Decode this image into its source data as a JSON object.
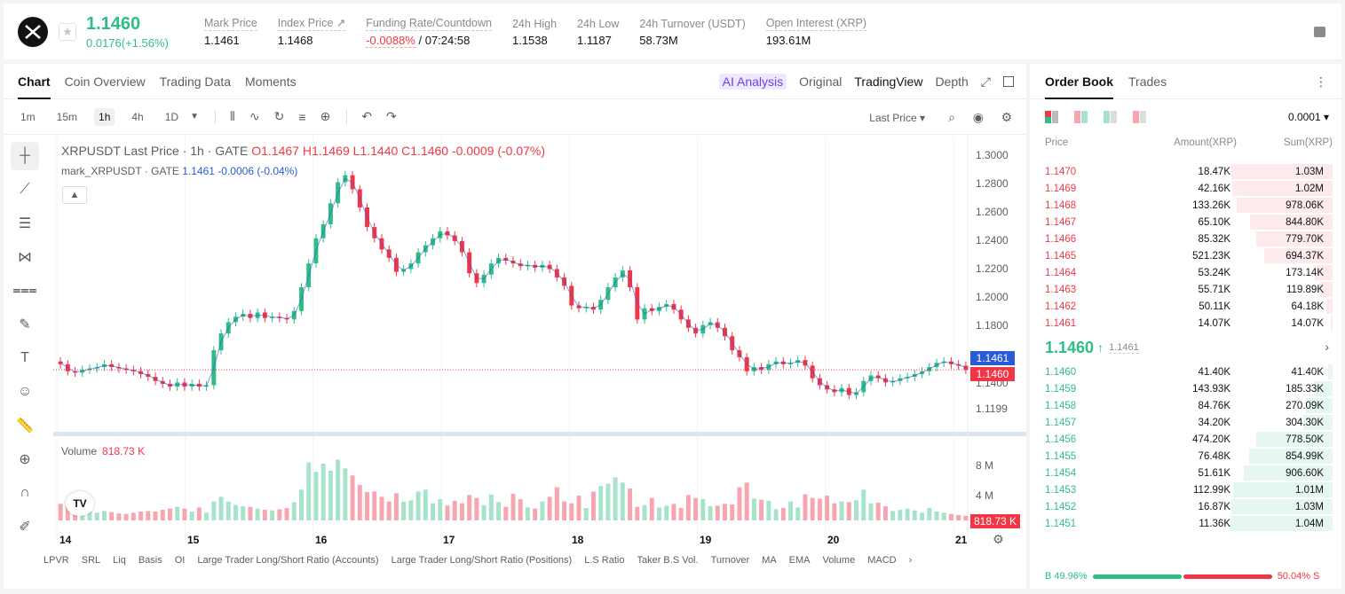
{
  "header": {
    "last_price": "1.1460",
    "change": "0.0176(+1.56%)",
    "stats": [
      {
        "label": "Mark Price",
        "value": "1.1461"
      },
      {
        "label": "Index Price ↗",
        "value": "1.1468"
      },
      {
        "label": "Funding Rate/Countdown",
        "value_neg": "-0.0088%",
        "value": " / 07:24:58"
      },
      {
        "label": "24h High",
        "value": "1.1538"
      },
      {
        "label": "24h Low",
        "value": "1.1187"
      },
      {
        "label": "24h Turnover (USDT)",
        "value": "58.73M"
      },
      {
        "label": "Open Interest (XRP)",
        "value": "193.61M"
      }
    ]
  },
  "chart_tabs": [
    "Chart",
    "Coin Overview",
    "Trading Data",
    "Moments"
  ],
  "view_tabs": [
    "AI Analysis",
    "Original",
    "TradingView",
    "Depth"
  ],
  "timeframes": [
    "1m",
    "15m",
    "1h",
    "4h",
    "1D"
  ],
  "price_type": "Last Price",
  "legend": {
    "title": "XRPUSDT Last Price · 1h · GATE",
    "o": "O1.1467",
    "h": "H1.1469",
    "l": "L1.1440",
    "c": "C1.1460",
    "chg": "-0.0009 (-0.07%)",
    "mark_name": "mark_XRPUSDT · GATE",
    "mark_val": "1.1461 -0.0006 (-0.04%)"
  },
  "volume_legend": {
    "label": "Volume",
    "value": "818.73 K"
  },
  "y_ticks": [
    "1.3000",
    "1.2800",
    "1.2600",
    "1.2400",
    "1.2200",
    "1.2000",
    "1.1800",
    "1.1400",
    "1.1199"
  ],
  "price_tags": {
    "mark": "1.1461",
    "last": "1.1460",
    "vol": "818.73 K"
  },
  "vol_ticks": [
    "8 M",
    "4 M"
  ],
  "x_ticks": [
    "14",
    "15",
    "16",
    "17",
    "18",
    "19",
    "20",
    "21"
  ],
  "indicators": [
    "LPVR",
    "SRL",
    "Liq",
    "Basis",
    "OI",
    "Large Trader Long/Short Ratio (Accounts)",
    "Large Trader Long/Short Ratio (Positions)",
    "L.S Ratio",
    "Taker B.S Vol.",
    "Turnover",
    "MA",
    "EMA",
    "Volume",
    "MACD"
  ],
  "chart_data": {
    "type": "candlestick",
    "symbol": "XRPUSDT",
    "interval": "1h",
    "x_range": [
      "14",
      "21"
    ],
    "ylim": [
      1.11,
      1.3
    ],
    "close_series": [
      1.15,
      1.145,
      1.144,
      1.146,
      1.147,
      1.148,
      1.15,
      1.148,
      1.147,
      1.146,
      1.145,
      1.143,
      1.141,
      1.138,
      1.136,
      1.134,
      1.137,
      1.134,
      1.136,
      1.134,
      1.135,
      1.16,
      1.172,
      1.18,
      1.184,
      1.186,
      1.183,
      1.187,
      1.183,
      1.184,
      1.183,
      1.182,
      1.188,
      1.205,
      1.222,
      1.24,
      1.25,
      1.265,
      1.28,
      1.285,
      1.275,
      1.262,
      1.248,
      1.24,
      1.232,
      1.226,
      1.216,
      1.218,
      1.222,
      1.23,
      1.235,
      1.24,
      1.245,
      1.242,
      1.238,
      1.23,
      1.215,
      1.208,
      1.214,
      1.222,
      1.226,
      1.224,
      1.222,
      1.22,
      1.221,
      1.219,
      1.221,
      1.218,
      1.212,
      1.206,
      1.192,
      1.19,
      1.191,
      1.189,
      1.196,
      1.205,
      1.212,
      1.217,
      1.205,
      1.182,
      1.19,
      1.188,
      1.191,
      1.193,
      1.189,
      1.182,
      1.176,
      1.172,
      1.178,
      1.18,
      1.176,
      1.17,
      1.16,
      1.155,
      1.145,
      1.148,
      1.146,
      1.15,
      1.152,
      1.15,
      1.151,
      1.153,
      1.149,
      1.14,
      1.135,
      1.132,
      1.13,
      1.133,
      1.128,
      1.13,
      1.138,
      1.142,
      1.14,
      1.137,
      1.138,
      1.14,
      1.141,
      1.143,
      1.145,
      1.148,
      1.151,
      1.152,
      1.15,
      1.149,
      1.146
    ],
    "volume_series": [
      2.8,
      2.4,
      2.0,
      1.6,
      1.5,
      1.3,
      1.6,
      1.4,
      1.2,
      1.1,
      1.3,
      1.5,
      1.6,
      1.5,
      1.8,
      2.0,
      2.3,
      2.0,
      1.5,
      2.2,
      1.3,
      3.2,
      4.0,
      3.2,
      2.6,
      2.4,
      2.3,
      2.0,
      1.8,
      1.7,
      1.9,
      2.1,
      3.1,
      5.2,
      9.8,
      8.2,
      9.6,
      8.4,
      10.3,
      8.8,
      7.6,
      6.0,
      4.8,
      4.9,
      4.0,
      3.2,
      4.6,
      3.2,
      3.4,
      4.9,
      5.2,
      2.9,
      3.6,
      2.5,
      3.3,
      2.9,
      4.3,
      3.8,
      2.6,
      4.4,
      3.1,
      2.3,
      4.5,
      3.6,
      2.2,
      2.0,
      3.2,
      4.0,
      5.6,
      3.2,
      2.9,
      4.2,
      2.1,
      4.9,
      5.8,
      6.2,
      7.3,
      6.4,
      5.4,
      2.3,
      2.6,
      3.8,
      2.2,
      2.5,
      2.8,
      2.1,
      4.3,
      3.8,
      3.6,
      2.4,
      2.5,
      2.8,
      2.7,
      5.6,
      6.4,
      3.7,
      3.5,
      3.3,
      1.9,
      2.1,
      3.2,
      2.2,
      4.4,
      3.8,
      3.7,
      4.2,
      2.9,
      3.2,
      3.1,
      3.4,
      5.2,
      2.9,
      3.0,
      2.4,
      1.6,
      1.8,
      2.0,
      1.7,
      1.3,
      2.1,
      1.5,
      1.3,
      1.1,
      0.9,
      0.8
    ],
    "volume_unit": "M"
  },
  "order_book": {
    "tabs": [
      "Order Book",
      "Trades"
    ],
    "precision": "0.0001",
    "headers": [
      "Price",
      "Amount(XRP)",
      "Sum(XRP)"
    ],
    "asks": [
      {
        "price": "1.1470",
        "amount": "18.47K",
        "sum": "1.03M",
        "depth": 0.99
      },
      {
        "price": "1.1469",
        "amount": "42.16K",
        "sum": "1.02M",
        "depth": 0.98
      },
      {
        "price": "1.1468",
        "amount": "133.26K",
        "sum": "978.06K",
        "depth": 0.94
      },
      {
        "price": "1.1467",
        "amount": "65.10K",
        "sum": "844.80K",
        "depth": 0.81
      },
      {
        "price": "1.1466",
        "amount": "85.32K",
        "sum": "779.70K",
        "depth": 0.75
      },
      {
        "price": "1.1465",
        "amount": "521.23K",
        "sum": "694.37K",
        "depth": 0.67
      },
      {
        "price": "1.1464",
        "amount": "53.24K",
        "sum": "173.14K",
        "depth": 0.17
      },
      {
        "price": "1.1463",
        "amount": "55.71K",
        "sum": "119.89K",
        "depth": 0.12
      },
      {
        "price": "1.1462",
        "amount": "50.11K",
        "sum": "64.18K",
        "depth": 0.06
      },
      {
        "price": "1.1461",
        "amount": "14.07K",
        "sum": "14.07K",
        "depth": 0.02
      }
    ],
    "mid_price": "1.1460",
    "mid_mark": "1.1461",
    "bids": [
      {
        "price": "1.1460",
        "amount": "41.40K",
        "sum": "41.40K",
        "depth": 0.04
      },
      {
        "price": "1.1459",
        "amount": "143.93K",
        "sum": "185.33K",
        "depth": 0.18
      },
      {
        "price": "1.1458",
        "amount": "84.76K",
        "sum": "270.09K",
        "depth": 0.26
      },
      {
        "price": "1.1457",
        "amount": "34.20K",
        "sum": "304.30K",
        "depth": 0.29
      },
      {
        "price": "1.1456",
        "amount": "474.20K",
        "sum": "778.50K",
        "depth": 0.75
      },
      {
        "price": "1.1455",
        "amount": "76.48K",
        "sum": "854.99K",
        "depth": 0.82
      },
      {
        "price": "1.1454",
        "amount": "51.61K",
        "sum": "906.60K",
        "depth": 0.87
      },
      {
        "price": "1.1453",
        "amount": "112.99K",
        "sum": "1.01M",
        "depth": 0.97
      },
      {
        "price": "1.1452",
        "amount": "16.87K",
        "sum": "1.03M",
        "depth": 0.99
      },
      {
        "price": "1.1451",
        "amount": "11.36K",
        "sum": "1.04M",
        "depth": 1.0
      }
    ],
    "buy_ratio": "B 49.96%",
    "sell_ratio": "50.04% S",
    "buy_pct": 49.96
  },
  "colors": {
    "up": "#2ebd85",
    "down": "#f23645",
    "up_vol": "#a7e3cb",
    "down_vol": "#f7a6b0",
    "mark_line": "#2b5ad8"
  }
}
